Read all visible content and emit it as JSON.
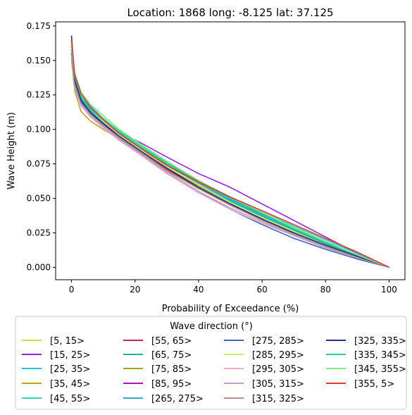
{
  "chart_data": {
    "type": "line",
    "title": "Location: 1868 long: -8.125 lat: 37.125",
    "xlabel": "Probability of Exceedance (%)",
    "ylabel": "Wave Height (m)",
    "xlim": [
      -5,
      105
    ],
    "ylim": [
      -0.009,
      0.178
    ],
    "xticks": [
      0,
      20,
      40,
      60,
      80,
      100
    ],
    "yticks": [
      0.0,
      0.025,
      0.05,
      0.075,
      0.1,
      0.125,
      0.15,
      0.175
    ],
    "xtick_labels": [
      "0",
      "20",
      "40",
      "60",
      "80",
      "100"
    ],
    "ytick_labels": [
      "0.000",
      "0.025",
      "0.050",
      "0.075",
      "0.100",
      "0.125",
      "0.150",
      "0.175"
    ],
    "grid": false,
    "legend_title": "Wave direction (°)",
    "legend_placement": "below",
    "series": [
      {
        "name": "[5, 15>",
        "color": "#c6e233",
        "x": [
          0,
          1,
          3,
          6,
          10,
          15,
          22,
          30,
          40,
          50,
          60,
          70,
          80,
          90,
          100
        ],
        "y": [
          0.165,
          0.135,
          0.12,
          0.11,
          0.102,
          0.095,
          0.085,
          0.073,
          0.058,
          0.045,
          0.034,
          0.024,
          0.015,
          0.007,
          0.0
        ]
      },
      {
        "name": "[15, 25>",
        "color": "#9b1de8",
        "x": [
          0,
          1,
          3,
          6,
          10,
          15,
          22,
          30,
          40,
          50,
          60,
          70,
          80,
          90,
          100
        ],
        "y": [
          0.16,
          0.132,
          0.118,
          0.112,
          0.106,
          0.098,
          0.09,
          0.08,
          0.068,
          0.058,
          0.046,
          0.034,
          0.022,
          0.01,
          0.0
        ]
      },
      {
        "name": "[25, 35>",
        "color": "#1ec8d0",
        "x": [
          0,
          1,
          3,
          6,
          10,
          15,
          22,
          30,
          40,
          50,
          60,
          70,
          80,
          90,
          100
        ],
        "y": [
          0.158,
          0.138,
          0.126,
          0.117,
          0.108,
          0.098,
          0.087,
          0.076,
          0.063,
          0.05,
          0.04,
          0.03,
          0.02,
          0.01,
          0.0
        ]
      },
      {
        "name": "[35, 45>",
        "color": "#c1a514",
        "x": [
          0,
          1,
          3,
          6,
          10,
          15,
          22,
          30,
          40,
          50,
          60,
          70,
          80,
          90,
          100
        ],
        "y": [
          0.15,
          0.128,
          0.113,
          0.106,
          0.1,
          0.093,
          0.083,
          0.071,
          0.057,
          0.045,
          0.034,
          0.024,
          0.015,
          0.007,
          0.0
        ]
      },
      {
        "name": "[45, 55>",
        "color": "#33d9b0",
        "x": [
          0,
          1,
          3,
          6,
          10,
          15,
          22,
          30,
          40,
          50,
          60,
          70,
          80,
          90,
          100
        ],
        "y": [
          0.162,
          0.14,
          0.125,
          0.116,
          0.108,
          0.099,
          0.088,
          0.076,
          0.062,
          0.049,
          0.038,
          0.027,
          0.017,
          0.008,
          0.0
        ]
      },
      {
        "name": "[55, 65>",
        "color": "#c2294e",
        "x": [
          0,
          1,
          3,
          6,
          10,
          15,
          22,
          30,
          40,
          50,
          60,
          70,
          80,
          90,
          100
        ],
        "y": [
          0.16,
          0.138,
          0.124,
          0.114,
          0.105,
          0.095,
          0.083,
          0.071,
          0.058,
          0.046,
          0.035,
          0.025,
          0.016,
          0.008,
          0.0
        ]
      },
      {
        "name": "[65, 75>",
        "color": "#17b890",
        "x": [
          0,
          1,
          3,
          6,
          10,
          15,
          22,
          30,
          40,
          50,
          60,
          70,
          80,
          90,
          100
        ],
        "y": [
          0.156,
          0.136,
          0.122,
          0.113,
          0.105,
          0.096,
          0.085,
          0.073,
          0.06,
          0.048,
          0.037,
          0.027,
          0.017,
          0.008,
          0.0
        ]
      },
      {
        "name": "[75, 85>",
        "color": "#a9a116",
        "x": [
          0,
          1,
          3,
          6,
          10,
          15,
          22,
          30,
          40,
          50,
          60,
          70,
          80,
          90,
          100
        ],
        "y": [
          0.152,
          0.132,
          0.119,
          0.111,
          0.104,
          0.095,
          0.084,
          0.072,
          0.059,
          0.047,
          0.036,
          0.026,
          0.016,
          0.008,
          0.0
        ]
      },
      {
        "name": "[85, 95>",
        "color": "#b012b5",
        "x": [
          0,
          1,
          3,
          6,
          10,
          15,
          22,
          30,
          40,
          50,
          60,
          70,
          80,
          90,
          100
        ],
        "y": [
          0.158,
          0.134,
          0.12,
          0.112,
          0.104,
          0.096,
          0.086,
          0.075,
          0.062,
          0.05,
          0.039,
          0.028,
          0.018,
          0.009,
          0.0
        ]
      },
      {
        "name": "[265, 275>",
        "color": "#2fa7e0",
        "x": [
          0,
          1,
          3,
          6,
          10,
          15,
          22,
          30,
          40,
          50,
          60,
          70,
          80,
          90,
          100
        ],
        "y": [
          0.16,
          0.137,
          0.123,
          0.114,
          0.106,
          0.097,
          0.086,
          0.074,
          0.061,
          0.049,
          0.038,
          0.028,
          0.018,
          0.009,
          0.0
        ]
      },
      {
        "name": "[275, 285>",
        "color": "#3b63c8",
        "x": [
          0,
          1,
          3,
          6,
          10,
          15,
          22,
          30,
          40,
          50,
          60,
          70,
          80,
          90,
          100
        ],
        "y": [
          0.155,
          0.134,
          0.12,
          0.111,
          0.103,
          0.094,
          0.082,
          0.069,
          0.055,
          0.042,
          0.031,
          0.021,
          0.013,
          0.006,
          0.0
        ]
      },
      {
        "name": "[285, 295>",
        "color": "#c7f266",
        "x": [
          0,
          1,
          3,
          6,
          10,
          15,
          22,
          30,
          40,
          50,
          60,
          70,
          80,
          90,
          100
        ],
        "y": [
          0.163,
          0.139,
          0.125,
          0.115,
          0.106,
          0.096,
          0.085,
          0.073,
          0.06,
          0.047,
          0.036,
          0.026,
          0.016,
          0.007,
          0.0
        ]
      },
      {
        "name": "[295, 305>",
        "color": "#f4a9c4",
        "x": [
          0,
          1,
          3,
          6,
          10,
          15,
          22,
          30,
          40,
          50,
          60,
          70,
          80,
          90,
          100
        ],
        "y": [
          0.15,
          0.13,
          0.117,
          0.109,
          0.101,
          0.092,
          0.081,
          0.068,
          0.054,
          0.042,
          0.032,
          0.023,
          0.015,
          0.007,
          0.0
        ]
      },
      {
        "name": "[305, 315>",
        "color": "#b6a3c8",
        "x": [
          0,
          1,
          3,
          6,
          10,
          15,
          22,
          30,
          40,
          50,
          60,
          70,
          80,
          90,
          100
        ],
        "y": [
          0.152,
          0.131,
          0.118,
          0.11,
          0.102,
          0.093,
          0.082,
          0.069,
          0.055,
          0.043,
          0.033,
          0.023,
          0.014,
          0.007,
          0.0
        ]
      },
      {
        "name": "[315, 325>",
        "color": "#b98f95",
        "x": [
          0,
          1,
          3,
          6,
          10,
          15,
          22,
          30,
          40,
          50,
          60,
          70,
          80,
          90,
          100
        ],
        "y": [
          0.154,
          0.132,
          0.119,
          0.111,
          0.103,
          0.094,
          0.083,
          0.07,
          0.057,
          0.045,
          0.034,
          0.024,
          0.015,
          0.007,
          0.0
        ]
      },
      {
        "name": "[325, 335>",
        "color": "#1f2f8c",
        "x": [
          0,
          1,
          3,
          6,
          10,
          15,
          22,
          30,
          40,
          50,
          60,
          70,
          80,
          90,
          100
        ],
        "y": [
          0.168,
          0.136,
          0.121,
          0.112,
          0.104,
          0.095,
          0.084,
          0.072,
          0.058,
          0.046,
          0.035,
          0.025,
          0.016,
          0.008,
          0.0
        ]
      },
      {
        "name": "[335, 345>",
        "color": "#1fd396",
        "x": [
          0,
          1,
          3,
          6,
          10,
          15,
          22,
          30,
          40,
          50,
          60,
          70,
          80,
          90,
          100
        ],
        "y": [
          0.158,
          0.138,
          0.124,
          0.115,
          0.107,
          0.098,
          0.087,
          0.075,
          0.062,
          0.05,
          0.039,
          0.028,
          0.018,
          0.009,
          0.0
        ]
      },
      {
        "name": "[345, 355>",
        "color": "#86ea7e",
        "x": [
          0,
          1,
          3,
          6,
          10,
          15,
          22,
          30,
          40,
          50,
          60,
          70,
          80,
          90,
          100
        ],
        "y": [
          0.16,
          0.141,
          0.127,
          0.118,
          0.11,
          0.1,
          0.089,
          0.077,
          0.063,
          0.051,
          0.04,
          0.029,
          0.019,
          0.009,
          0.0
        ]
      },
      {
        "name": "[355, 5>",
        "color": "#e8382d",
        "x": [
          0,
          1,
          3,
          6,
          10,
          15,
          22,
          30,
          40,
          50,
          60,
          70,
          80,
          90,
          100
        ],
        "y": [
          0.165,
          0.14,
          0.126,
          0.116,
          0.107,
          0.097,
          0.086,
          0.074,
          0.062,
          0.051,
          0.041,
          0.031,
          0.021,
          0.011,
          0.0
        ]
      }
    ]
  }
}
